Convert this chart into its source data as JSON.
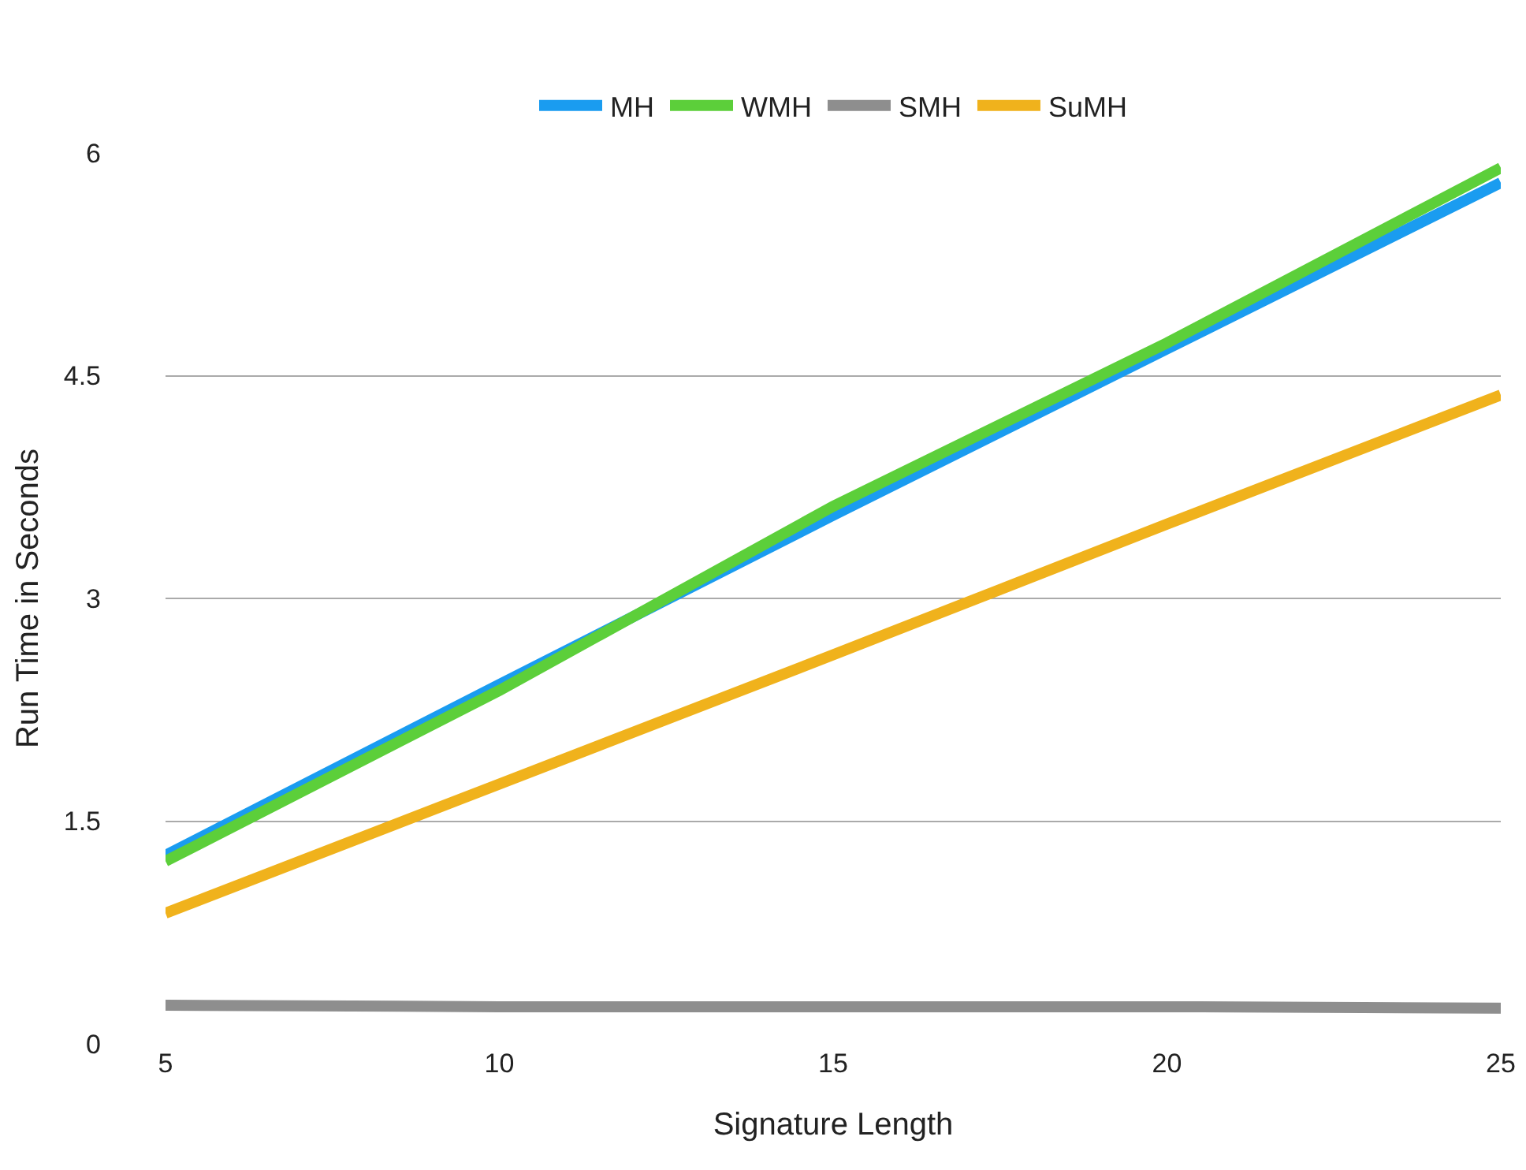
{
  "chart_data": {
    "type": "line",
    "xlabel": "Signature Length",
    "ylabel": "Run Time in Seconds",
    "x": [
      5,
      10,
      15,
      20,
      25
    ],
    "series": [
      {
        "name": "MH",
        "color": "#1a9cf0",
        "values": [
          1.27,
          2.42,
          3.56,
          4.68,
          5.8
        ]
      },
      {
        "name": "WMH",
        "color": "#5ccf3a",
        "values": [
          1.23,
          2.38,
          3.62,
          4.72,
          5.9
        ]
      },
      {
        "name": "SMH",
        "color": "#8e8e8e",
        "values": [
          0.26,
          0.25,
          0.25,
          0.25,
          0.24
        ]
      },
      {
        "name": "SuMH",
        "color": "#f0b21c",
        "values": [
          0.88,
          1.75,
          2.62,
          3.5,
          4.37
        ]
      }
    ],
    "xlim": [
      5,
      25
    ],
    "xticks": [
      5,
      10,
      15,
      20,
      25
    ],
    "ylim": [
      0,
      6
    ],
    "yticks": [
      0,
      1.5,
      3,
      4.5,
      6
    ],
    "grid": "y",
    "legend": "top",
    "marker": "none",
    "line_style": "solid"
  }
}
